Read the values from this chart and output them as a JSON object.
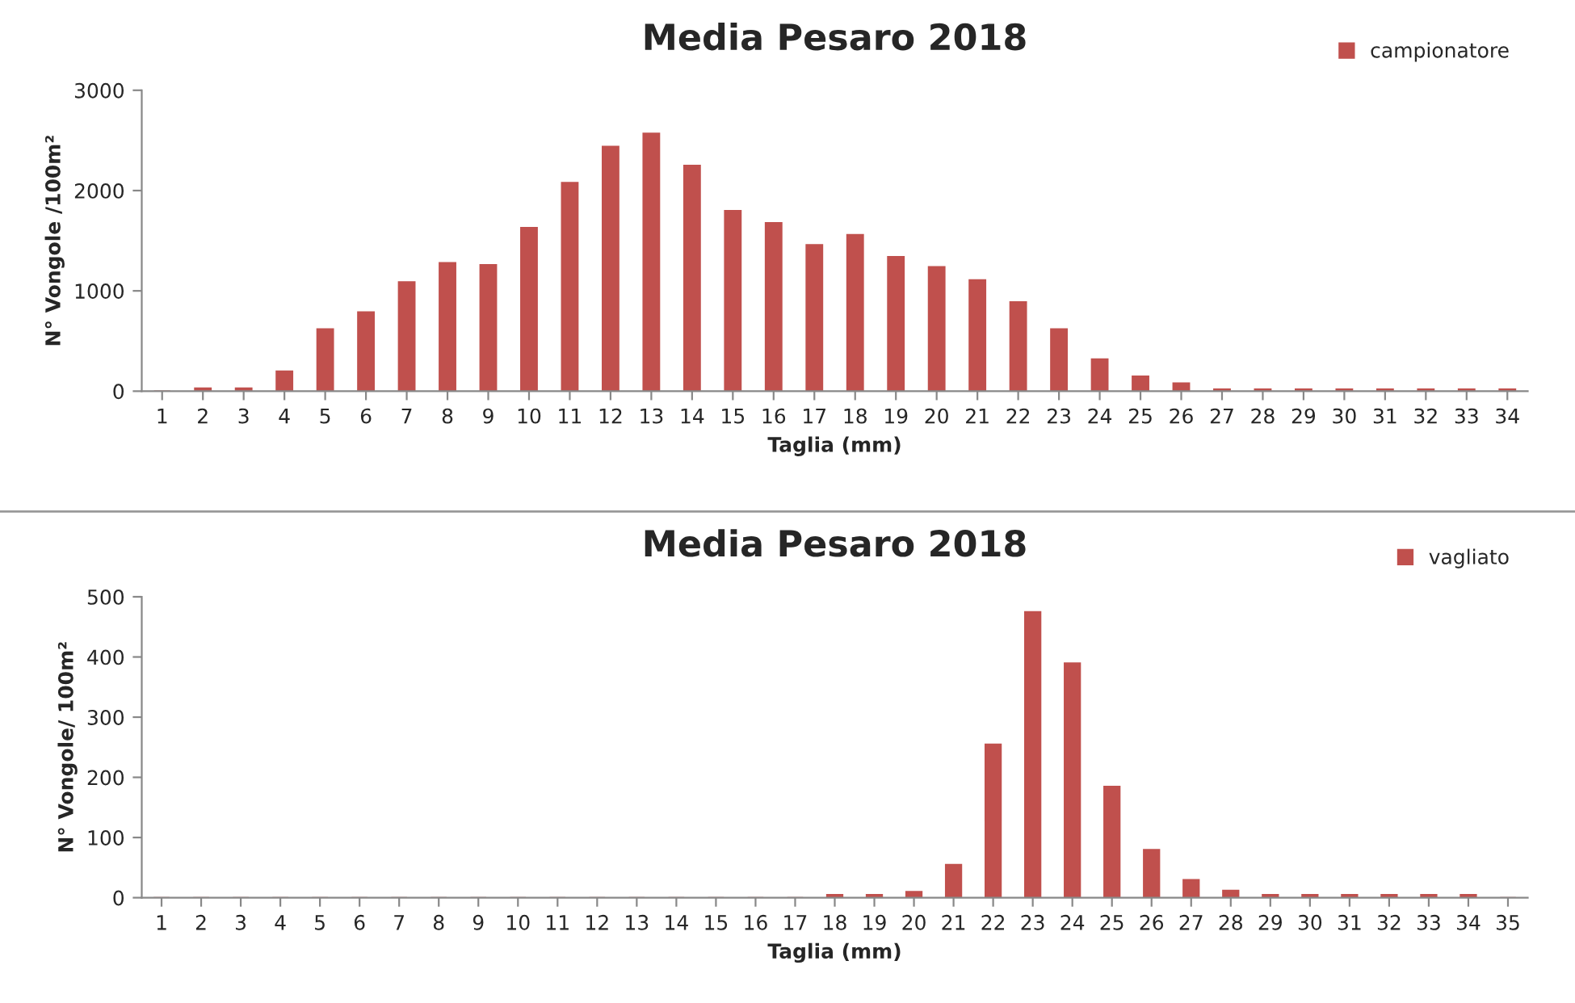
{
  "chart_data": [
    {
      "type": "bar",
      "title": "Media Pesaro 2018",
      "xlabel": "Taglia (mm)",
      "ylabel": "N° Vongole /100m²",
      "categories": [
        "1",
        "2",
        "3",
        "4",
        "5",
        "6",
        "7",
        "8",
        "9",
        "10",
        "11",
        "12",
        "13",
        "14",
        "15",
        "16",
        "17",
        "18",
        "19",
        "20",
        "21",
        "22",
        "23",
        "24",
        "25",
        "26",
        "27",
        "28",
        "29",
        "30",
        "31",
        "32",
        "33",
        "34"
      ],
      "series": [
        {
          "name": "campionatore",
          "color": "#c0504d",
          "values": [
            0,
            30,
            30,
            200,
            620,
            790,
            1090,
            1280,
            1260,
            1630,
            2080,
            2440,
            2570,
            2250,
            1800,
            1680,
            1460,
            1560,
            1340,
            1240,
            1110,
            890,
            620,
            320,
            150,
            80,
            20,
            20,
            20,
            20,
            20,
            20,
            20,
            20
          ]
        }
      ],
      "ylim": [
        0,
        3000
      ],
      "yticks": [
        0,
        1000,
        2000,
        3000
      ],
      "grid": false,
      "legend": "top right"
    },
    {
      "type": "bar",
      "title": "Media Pesaro 2018",
      "xlabel": "Taglia (mm)",
      "ylabel": "N° Vongole/ 100m²",
      "categories": [
        "1",
        "2",
        "3",
        "4",
        "5",
        "6",
        "7",
        "8",
        "9",
        "10",
        "11",
        "12",
        "13",
        "14",
        "15",
        "16",
        "17",
        "18",
        "19",
        "20",
        "21",
        "22",
        "23",
        "24",
        "25",
        "26",
        "27",
        "28",
        "29",
        "30",
        "31",
        "32",
        "33",
        "34",
        "35"
      ],
      "series": [
        {
          "name": "vagliato",
          "color": "#c0504d",
          "values": [
            0,
            0,
            0,
            0,
            0,
            0,
            0,
            0,
            0,
            0,
            0,
            0,
            0,
            0,
            0,
            0,
            0,
            5,
            5,
            10,
            55,
            255,
            475,
            390,
            185,
            80,
            30,
            12,
            5,
            5,
            5,
            5,
            5,
            5,
            0
          ]
        }
      ],
      "ylim": [
        0,
        500
      ],
      "yticks": [
        0,
        100,
        200,
        300,
        400,
        500
      ],
      "grid": false,
      "legend": "top right"
    }
  ]
}
